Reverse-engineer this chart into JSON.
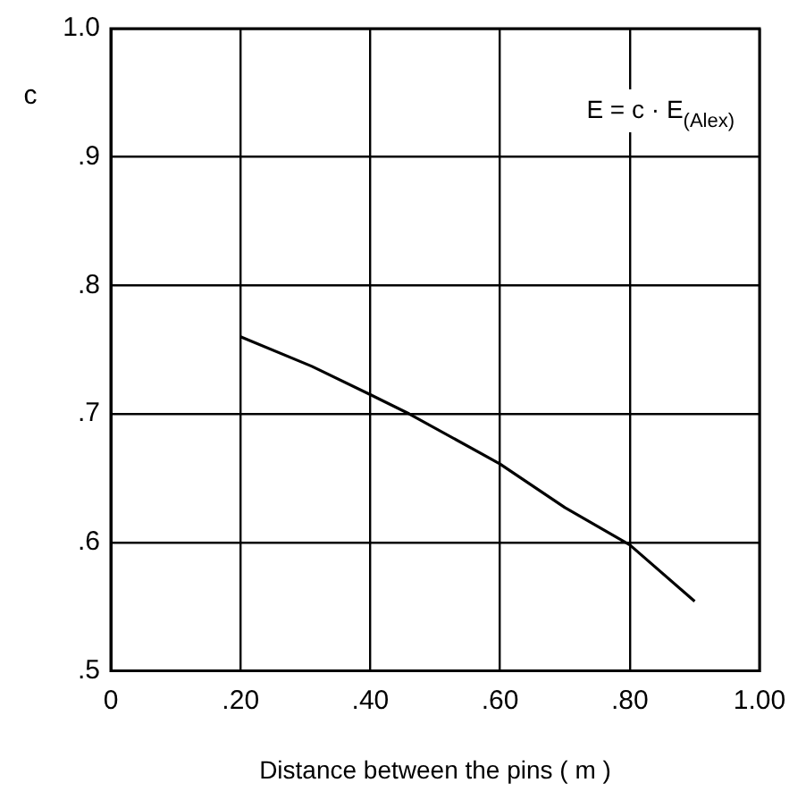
{
  "chart_data": {
    "type": "line",
    "xlabel": "Distance between the pins ( m )",
    "ylabel": "c",
    "annotations": [
      "E = c · E$_{(Alex)}$"
    ],
    "x": [
      0.2,
      0.31,
      0.4,
      0.46,
      0.6,
      0.7,
      0.8,
      0.9
    ],
    "series": [
      {
        "color": "#000000",
        "values": [
          0.76,
          0.737,
          0.715,
          0.7,
          0.661,
          0.627,
          0.598,
          0.554
        ]
      }
    ],
    "xlim": [
      0,
      1
    ],
    "xticks": [
      0,
      {
        "value": 0.2,
        "label": ".20"
      },
      {
        "value": 0.4,
        "label": ".40"
      },
      {
        "value": 0.6,
        "label": ".60"
      },
      {
        "value": 0.8,
        "label": ".80"
      },
      {
        "value": 1,
        "label": "1.00"
      }
    ],
    "ylim": [
      0.5,
      1
    ],
    "yticks": [
      {
        "value": 0.5,
        "label": ".5"
      },
      {
        "value": 0.6,
        "label": ".6"
      },
      {
        "value": 0.7,
        "label": ".7"
      },
      {
        "value": 0.8,
        "label": ".8"
      },
      {
        "value": 0.9,
        "label": ".9"
      },
      {
        "value": 1,
        "label": "1.0"
      }
    ],
    "grid": true,
    "marker": "none",
    "line_style": "solid"
  }
}
